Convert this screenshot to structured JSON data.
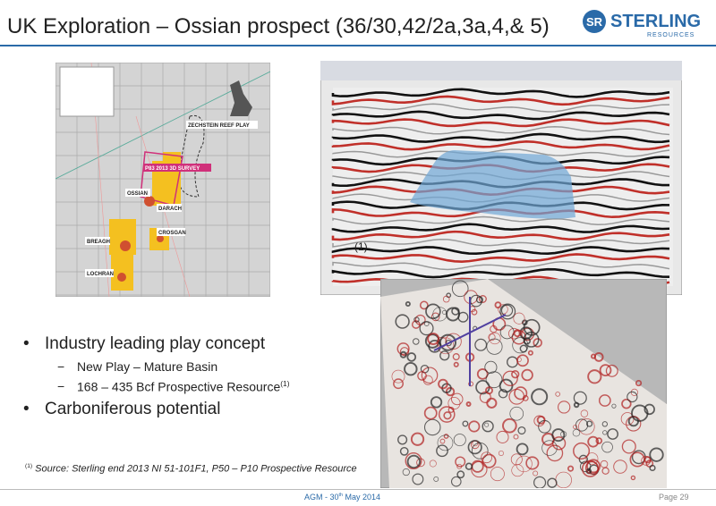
{
  "header": {
    "title": "UK Exploration – Ossian prospect (36/30,42/2a,3a,4,& 5)",
    "logo": {
      "name": "STERLING",
      "sub": "RESOURCES"
    }
  },
  "map": {
    "labels": [
      "ZECHSTEIN REEF PLAY",
      "P83 2013 3D SURVEY",
      "OSSIAN",
      "DARACH",
      "CROSGAN",
      "BREAGH",
      "LOCHRAN"
    ]
  },
  "seismic": {
    "marker": "(1)"
  },
  "bullets": [
    {
      "text": "Industry leading play concept",
      "sub": [
        {
          "text": "New Play – Mature Basin"
        },
        {
          "text": "168 – 435 Bcf Prospective Resource",
          "sup": "(1)"
        }
      ]
    },
    {
      "text": "Carboniferous potential"
    }
  ],
  "footnote": {
    "marker": "(1)",
    "text": "Source: Sterling end 2013 NI 51-101F1, P50 – P10 Prospective Resource"
  },
  "footer": {
    "event": "AGM - 30",
    "sup": "th",
    "date": " May 2014",
    "page": "Page 29"
  }
}
